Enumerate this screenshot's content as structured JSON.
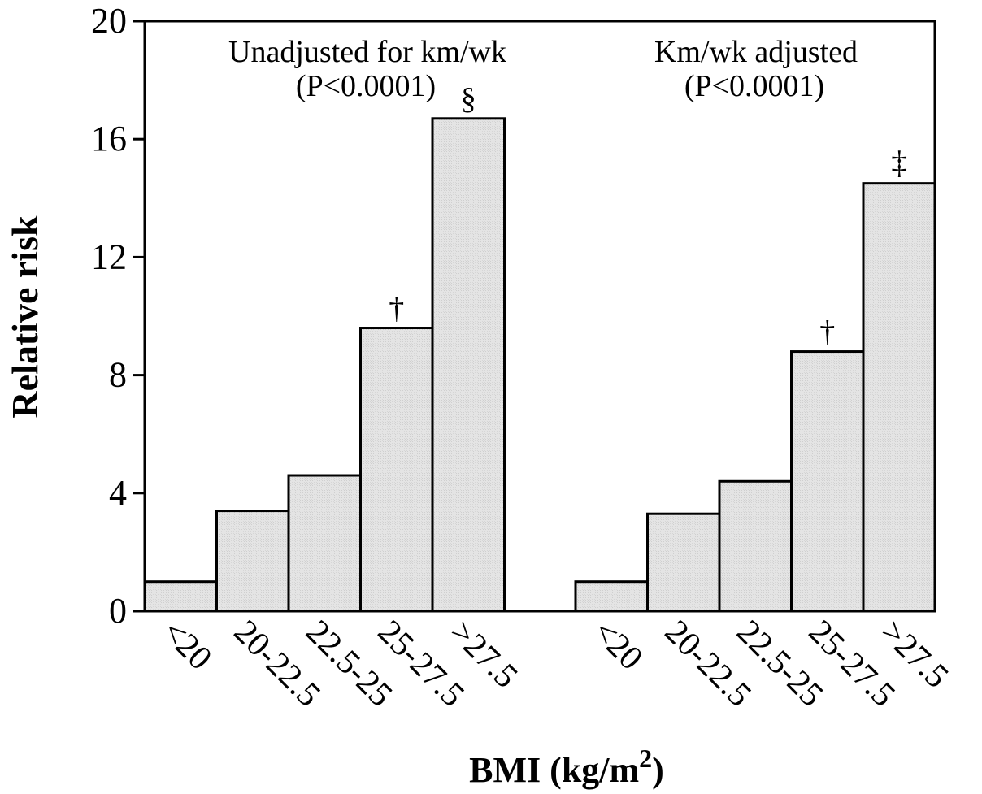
{
  "chart_data": {
    "type": "bar",
    "ylabel": "Relative risk",
    "xlabel": "BMI (kg/m",
    "xlabel_superscript": "2",
    "xlabel_close": ")",
    "ylim": [
      0,
      20
    ],
    "yticks": [
      "0",
      "4",
      "8",
      "12",
      "16",
      "20"
    ],
    "grid": false,
    "bar_color": "#e2e2e2",
    "groups": [
      {
        "title_line1": "Unadjusted for km/wk",
        "title_line2": "(P<0.0001)",
        "categories": [
          "<20",
          "20-22.5",
          "22.5-25",
          "25-27.5",
          ">27.5"
        ],
        "values": [
          1.0,
          3.4,
          4.6,
          9.6,
          16.7
        ],
        "markers": [
          "",
          "",
          "",
          "†",
          "§"
        ]
      },
      {
        "title_line1": "Km/wk adjusted",
        "title_line2": "(P<0.0001)",
        "categories": [
          "<20",
          "20-22.5",
          "22.5-25",
          "25-27.5",
          ">27.5"
        ],
        "values": [
          1.0,
          3.3,
          4.4,
          8.8,
          14.5
        ],
        "markers": [
          "",
          "",
          "",
          "†",
          "‡"
        ]
      }
    ]
  }
}
